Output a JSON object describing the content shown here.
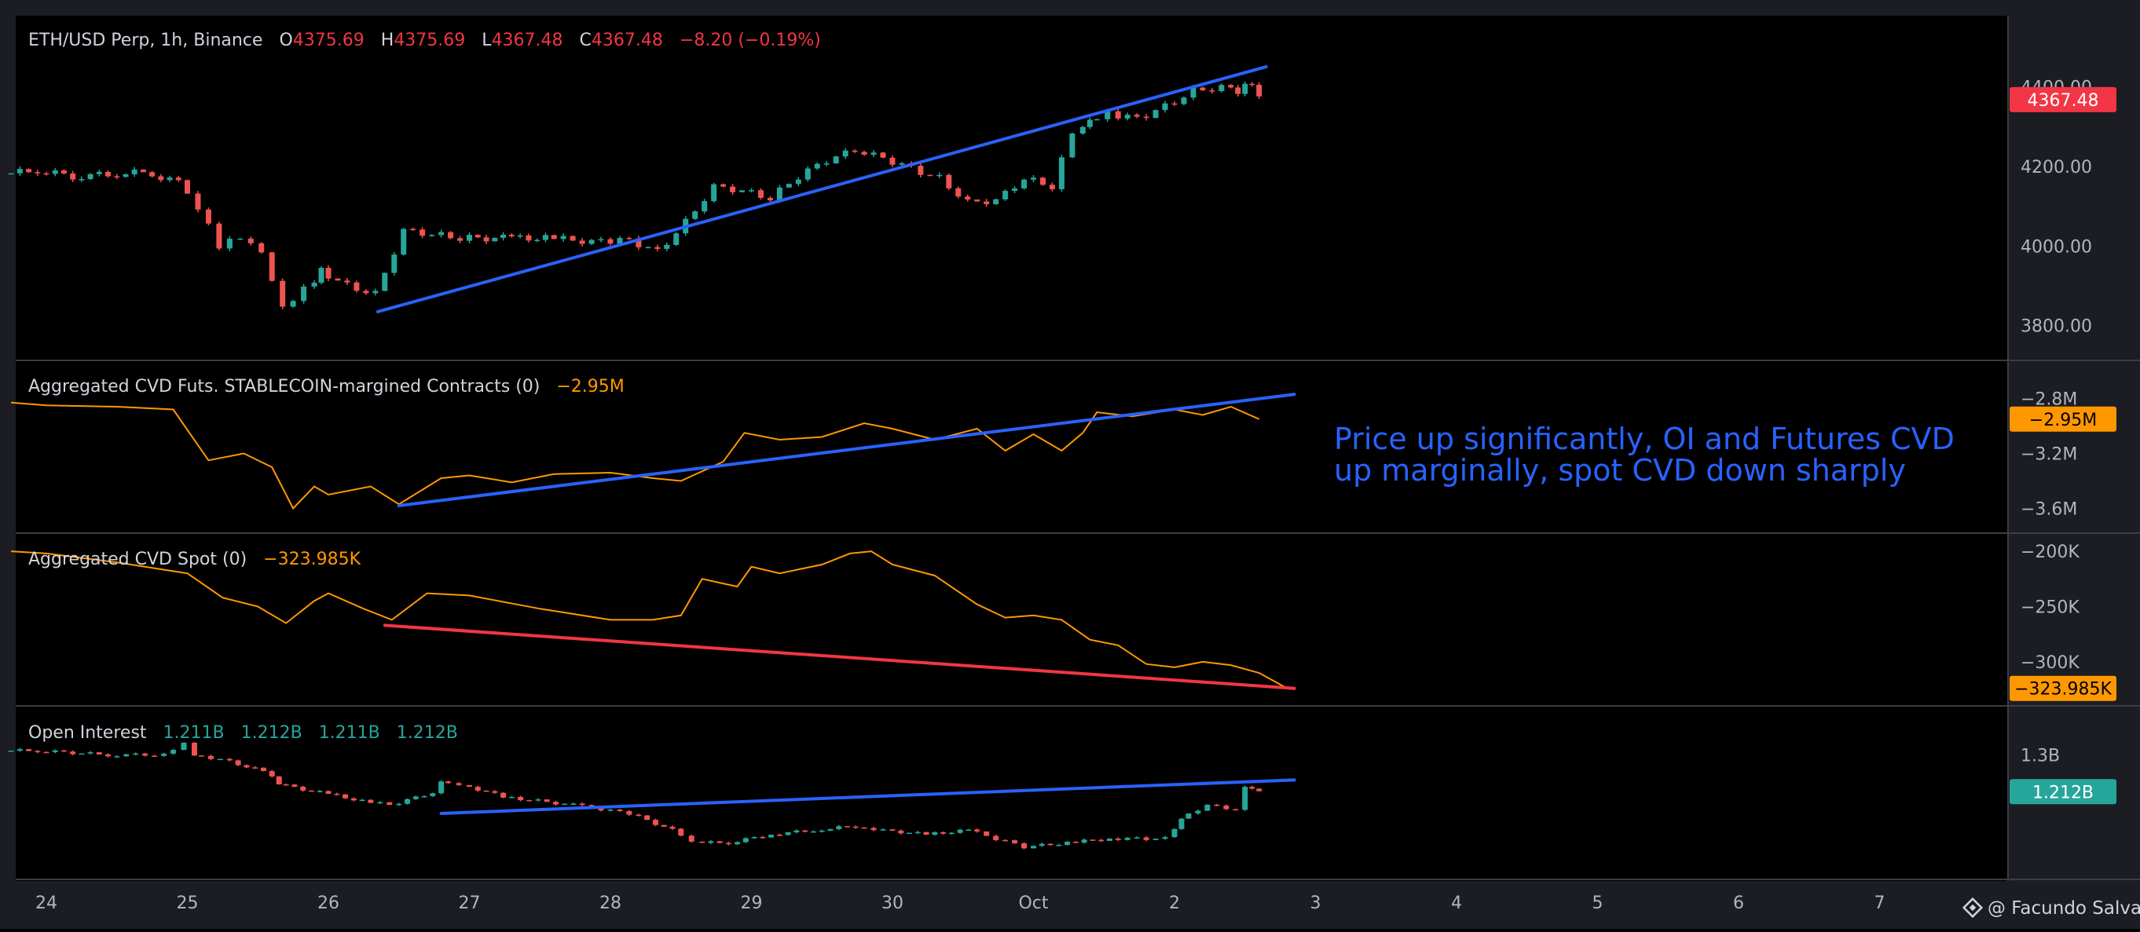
{
  "colors": {
    "background": "#000000",
    "frame": "#1b1d22",
    "up": "#26a69a",
    "down": "#ef5350",
    "cvd_line": "#ff9800",
    "trend_blue": "#2962ff",
    "trend_red": "#f23645",
    "badge_cvd": "#ff9800",
    "badge_oi": "#26a69a",
    "badge_price": "#f23645"
  },
  "header": {
    "symbol": "ETH/USD Perp, 1h, Binance",
    "open_label": "O",
    "open": "4375.69",
    "high_label": "H",
    "high": "4375.69",
    "low_label": "L",
    "low": "4367.48",
    "close_label": "C",
    "close": "4367.48",
    "change": "−8.20 (−0.19%)"
  },
  "annotation": {
    "line1": "Price up significantly, OI and Futures CVD",
    "line2": "up marginally, spot CVD down sharply"
  },
  "watermark": {
    "author": "@ Facundo Salva",
    "icon": "exchange-logo-icon"
  },
  "chart_data": [
    {
      "type": "candlestick",
      "pane": "price",
      "title": "ETH/USD Perp, 1h, Binance",
      "yticks": [
        "4400.00",
        "4200.00",
        "4000.00",
        "3800.00"
      ],
      "ylim": [
        3760,
        4460
      ],
      "last_value_label": "4367.48",
      "x_days": [
        23.75,
        24,
        24.25,
        24.5,
        24.75,
        25,
        25.15,
        25.3,
        25.45,
        25.6,
        25.75,
        25.9,
        26,
        26.2,
        26.4,
        26.6,
        26.8,
        27,
        27.3,
        27.6,
        28,
        28.2,
        28.4,
        28.6,
        28.8,
        29,
        29.2,
        29.4,
        29.6,
        29.8,
        30,
        30.2,
        30.4,
        30.6,
        30.8,
        31,
        31.2,
        31.35,
        31.45,
        31.6,
        31.8,
        32,
        32.2,
        32.4,
        32.5,
        32.6,
        32.65
      ],
      "close": [
        4180,
        4190,
        4175,
        4180,
        4185,
        4160,
        4100,
        4000,
        4020,
        3980,
        3840,
        3890,
        3940,
        3900,
        3880,
        4040,
        4030,
        4020,
        4020,
        4020,
        4010,
        4015,
        3985,
        4060,
        4150,
        4140,
        4120,
        4175,
        4215,
        4240,
        4220,
        4195,
        4170,
        4110,
        4115,
        4170,
        4150,
        4280,
        4310,
        4330,
        4320,
        4350,
        4390,
        4400,
        4390,
        4410,
        4367.48
      ],
      "trendline": {
        "color": "blue",
        "from": [
          26.35,
          3835
        ],
        "to": [
          32.65,
          4450
        ]
      }
    },
    {
      "type": "line",
      "pane": "futures_cvd",
      "title": "Aggregated CVD Futs. STABLECOIN-margined Contracts (0)",
      "last_value_label": "−2.95M",
      "yticks": [
        "−2.8M",
        "−3.2M",
        "−3.6M"
      ],
      "ylim": [
        -3.7,
        -2.7
      ],
      "x_days": [
        23.75,
        24,
        24.5,
        24.9,
        25.15,
        25.4,
        25.6,
        25.75,
        25.9,
        26,
        26.3,
        26.5,
        26.8,
        27,
        27.3,
        27.6,
        28,
        28.3,
        28.5,
        28.8,
        28.95,
        29.2,
        29.5,
        29.8,
        30,
        30.3,
        30.6,
        30.8,
        31,
        31.2,
        31.35,
        31.45,
        31.7,
        32,
        32.2,
        32.4,
        32.6
      ],
      "values": [
        -2.83,
        -2.85,
        -2.86,
        -2.88,
        -3.25,
        -3.2,
        -3.3,
        -3.6,
        -3.44,
        -3.5,
        -3.44,
        -3.57,
        -3.38,
        -3.36,
        -3.41,
        -3.35,
        -3.34,
        -3.38,
        -3.4,
        -3.26,
        -3.05,
        -3.1,
        -3.08,
        -2.98,
        -3.02,
        -3.1,
        -3.02,
        -3.18,
        -3.06,
        -3.18,
        -3.05,
        -2.9,
        -2.93,
        -2.88,
        -2.92,
        -2.86,
        -2.95
      ],
      "trendline": {
        "color": "blue",
        "from": [
          26.5,
          -3.58
        ],
        "to": [
          32.85,
          -2.77
        ]
      }
    },
    {
      "type": "line",
      "pane": "spot_cvd",
      "title": "Aggregated CVD Spot (0)",
      "last_value_label": "−323.985K",
      "yticks": [
        "−200K",
        "−250K",
        "−300K"
      ],
      "ylim": [
        -337,
        -190
      ],
      "x_days": [
        23.75,
        24,
        24.5,
        25,
        25.25,
        25.5,
        25.7,
        25.9,
        26,
        26.25,
        26.45,
        26.7,
        27,
        27.5,
        28,
        28.3,
        28.5,
        28.65,
        28.9,
        29,
        29.2,
        29.5,
        29.7,
        29.85,
        30,
        30.3,
        30.6,
        30.8,
        31,
        31.2,
        31.4,
        31.6,
        31.8,
        32,
        32.2,
        32.4,
        32.6,
        32.8
      ],
      "values": [
        -200,
        -202,
        -210,
        -220,
        -242,
        -250,
        -265,
        -245,
        -238,
        -252,
        -262,
        -238,
        -240,
        -252,
        -262,
        -262,
        -258,
        -225,
        -232,
        -214,
        -220,
        -212,
        -202,
        -200,
        -212,
        -222,
        -248,
        -260,
        -258,
        -262,
        -280,
        -285,
        -302,
        -305,
        -300,
        -303,
        -310,
        -324
      ],
      "trendline": {
        "color": "red",
        "from": [
          26.4,
          -267
        ],
        "to": [
          32.85,
          -324
        ]
      }
    },
    {
      "type": "candlestick",
      "pane": "open_interest",
      "title": "Open Interest",
      "ohlc_text": [
        "1.211B",
        "1.212B",
        "1.211B",
        "1.212B"
      ],
      "last_value_label": "1.212B",
      "yticks": [
        "1.3B",
        "1.2B"
      ],
      "ylim": [
        1.04,
        1.34
      ],
      "x_days": [
        23.75,
        24,
        24.5,
        24.9,
        25.05,
        25.1,
        25.3,
        25.6,
        25.7,
        26,
        26.3,
        26.5,
        26.8,
        26.85,
        27,
        27.3,
        27.8,
        28.2,
        28.5,
        28.65,
        28.9,
        29.2,
        29.5,
        29.8,
        30,
        30.3,
        30.6,
        30.8,
        31,
        31.3,
        31.6,
        31.8,
        32,
        32.1,
        32.3,
        32.5,
        32.55,
        32.65
      ],
      "close": [
        1.31,
        1.31,
        1.3,
        1.3,
        1.33,
        1.3,
        1.29,
        1.26,
        1.23,
        1.21,
        1.19,
        1.18,
        1.21,
        1.24,
        1.23,
        1.2,
        1.18,
        1.16,
        1.12,
        1.09,
        1.09,
        1.11,
        1.12,
        1.13,
        1.12,
        1.11,
        1.12,
        1.1,
        1.08,
        1.09,
        1.1,
        1.1,
        1.1,
        1.15,
        1.18,
        1.17,
        1.22,
        1.212
      ],
      "trendline": {
        "color": "blue",
        "from": [
          26.8,
          1.16
        ],
        "to": [
          32.85,
          1.24
        ]
      }
    }
  ],
  "x_axis": {
    "ticks": [
      {
        "day": 24,
        "label": "24"
      },
      {
        "day": 25,
        "label": "25"
      },
      {
        "day": 26,
        "label": "26"
      },
      {
        "day": 27,
        "label": "27"
      },
      {
        "day": 28,
        "label": "28"
      },
      {
        "day": 29,
        "label": "29"
      },
      {
        "day": 30,
        "label": "30"
      },
      {
        "day": 31,
        "label": "Oct"
      },
      {
        "day": 32,
        "label": "2"
      },
      {
        "day": 33,
        "label": "3"
      },
      {
        "day": 34,
        "label": "4"
      },
      {
        "day": 35,
        "label": "5"
      },
      {
        "day": 36,
        "label": "6"
      },
      {
        "day": 37,
        "label": "7"
      }
    ]
  }
}
